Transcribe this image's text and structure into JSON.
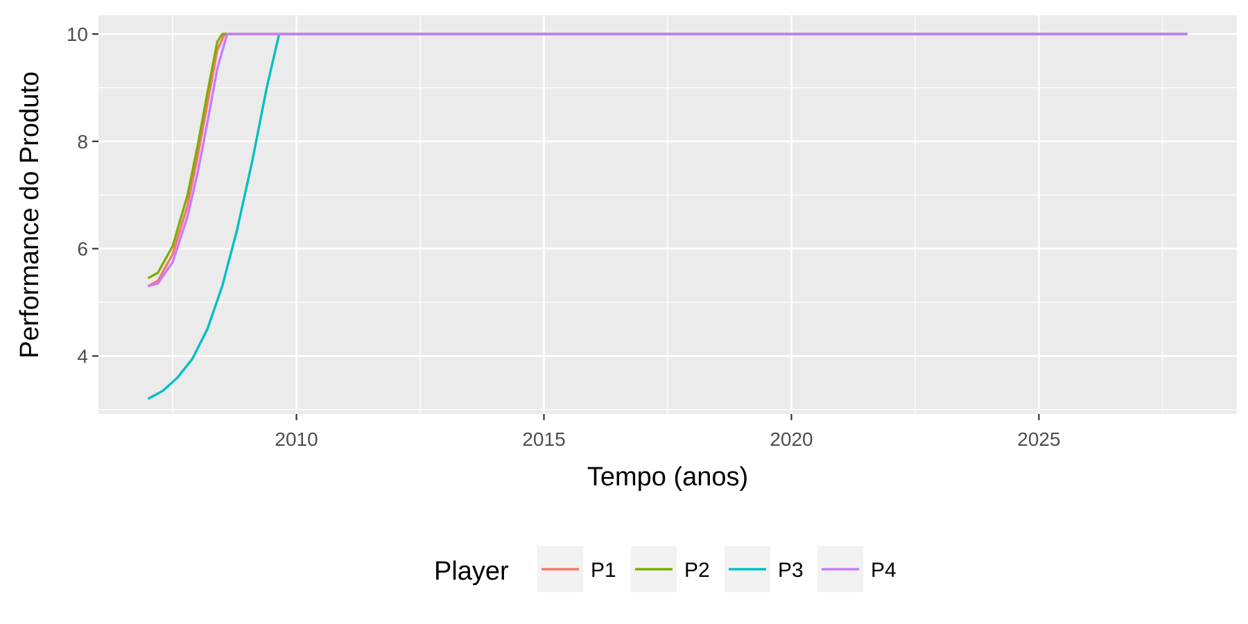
{
  "chart_data": {
    "type": "line",
    "xlabel": "Tempo (anos)",
    "ylabel": "Performance do Produto",
    "xlim": [
      2007.0,
      2028.0
    ],
    "ylim": [
      3.0,
      10.2
    ],
    "x_ticks": [
      2010,
      2015,
      2020,
      2025
    ],
    "y_ticks": [
      4,
      6,
      8,
      10
    ],
    "grid": true,
    "legend": {
      "title": "Player",
      "position": "bottom"
    },
    "series": [
      {
        "name": "P1",
        "color": "#F8766D",
        "x": [
          2007.0,
          2007.2,
          2007.5,
          2007.8,
          2008.0,
          2008.2,
          2008.4,
          2008.55,
          2028.0
        ],
        "y": [
          5.3,
          5.4,
          5.9,
          6.8,
          7.7,
          8.7,
          9.7,
          10.0,
          10.0
        ]
      },
      {
        "name": "P2",
        "color": "#7CAE00",
        "x": [
          2007.0,
          2007.2,
          2007.5,
          2007.8,
          2008.0,
          2008.2,
          2008.4,
          2008.5,
          2028.0
        ],
        "y": [
          5.45,
          5.55,
          6.05,
          7.0,
          7.9,
          8.9,
          9.85,
          10.0,
          10.0
        ]
      },
      {
        "name": "P3",
        "color": "#00BFC4",
        "x": [
          2007.0,
          2007.3,
          2007.6,
          2007.9,
          2008.2,
          2008.5,
          2008.8,
          2009.1,
          2009.4,
          2009.65,
          2028.0
        ],
        "y": [
          3.2,
          3.35,
          3.6,
          3.95,
          4.5,
          5.3,
          6.35,
          7.6,
          9.0,
          10.0,
          10.0
        ]
      },
      {
        "name": "P4",
        "color": "#C77CFF",
        "x": [
          2007.0,
          2007.2,
          2007.5,
          2007.8,
          2008.0,
          2008.2,
          2008.4,
          2008.6,
          2028.0
        ],
        "y": [
          5.3,
          5.35,
          5.75,
          6.6,
          7.4,
          8.35,
          9.35,
          10.0,
          10.0
        ]
      }
    ]
  }
}
